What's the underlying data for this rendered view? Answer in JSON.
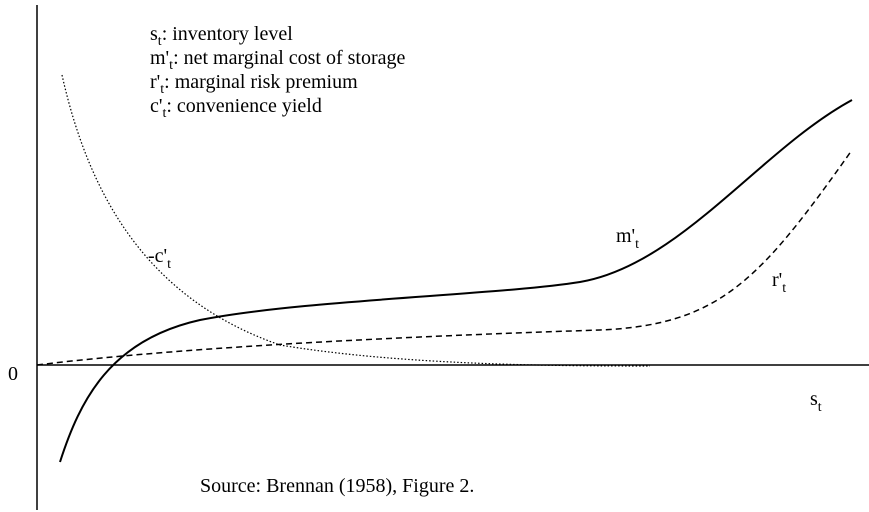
{
  "legend": [
    {
      "symbol": "s",
      "sub": "t",
      "text": ": inventory level"
    },
    {
      "symbol": "m'",
      "sub": "t",
      "text": ": net marginal cost of storage"
    },
    {
      "symbol": "r'",
      "sub": "t",
      "text": ": marginal risk premium"
    },
    {
      "symbol": "c'",
      "sub": "t",
      "text": ": convenience yield"
    }
  ],
  "origin_label": "0",
  "x_axis_label": {
    "symbol": "s",
    "sub": "t"
  },
  "curves": [
    {
      "symbol": "m'",
      "sub": "t"
    },
    {
      "symbol": "r'",
      "sub": "t"
    },
    {
      "symbol": "-c'",
      "sub": "t"
    }
  ],
  "source": "Source: Brennan (1958), Figure 2."
}
